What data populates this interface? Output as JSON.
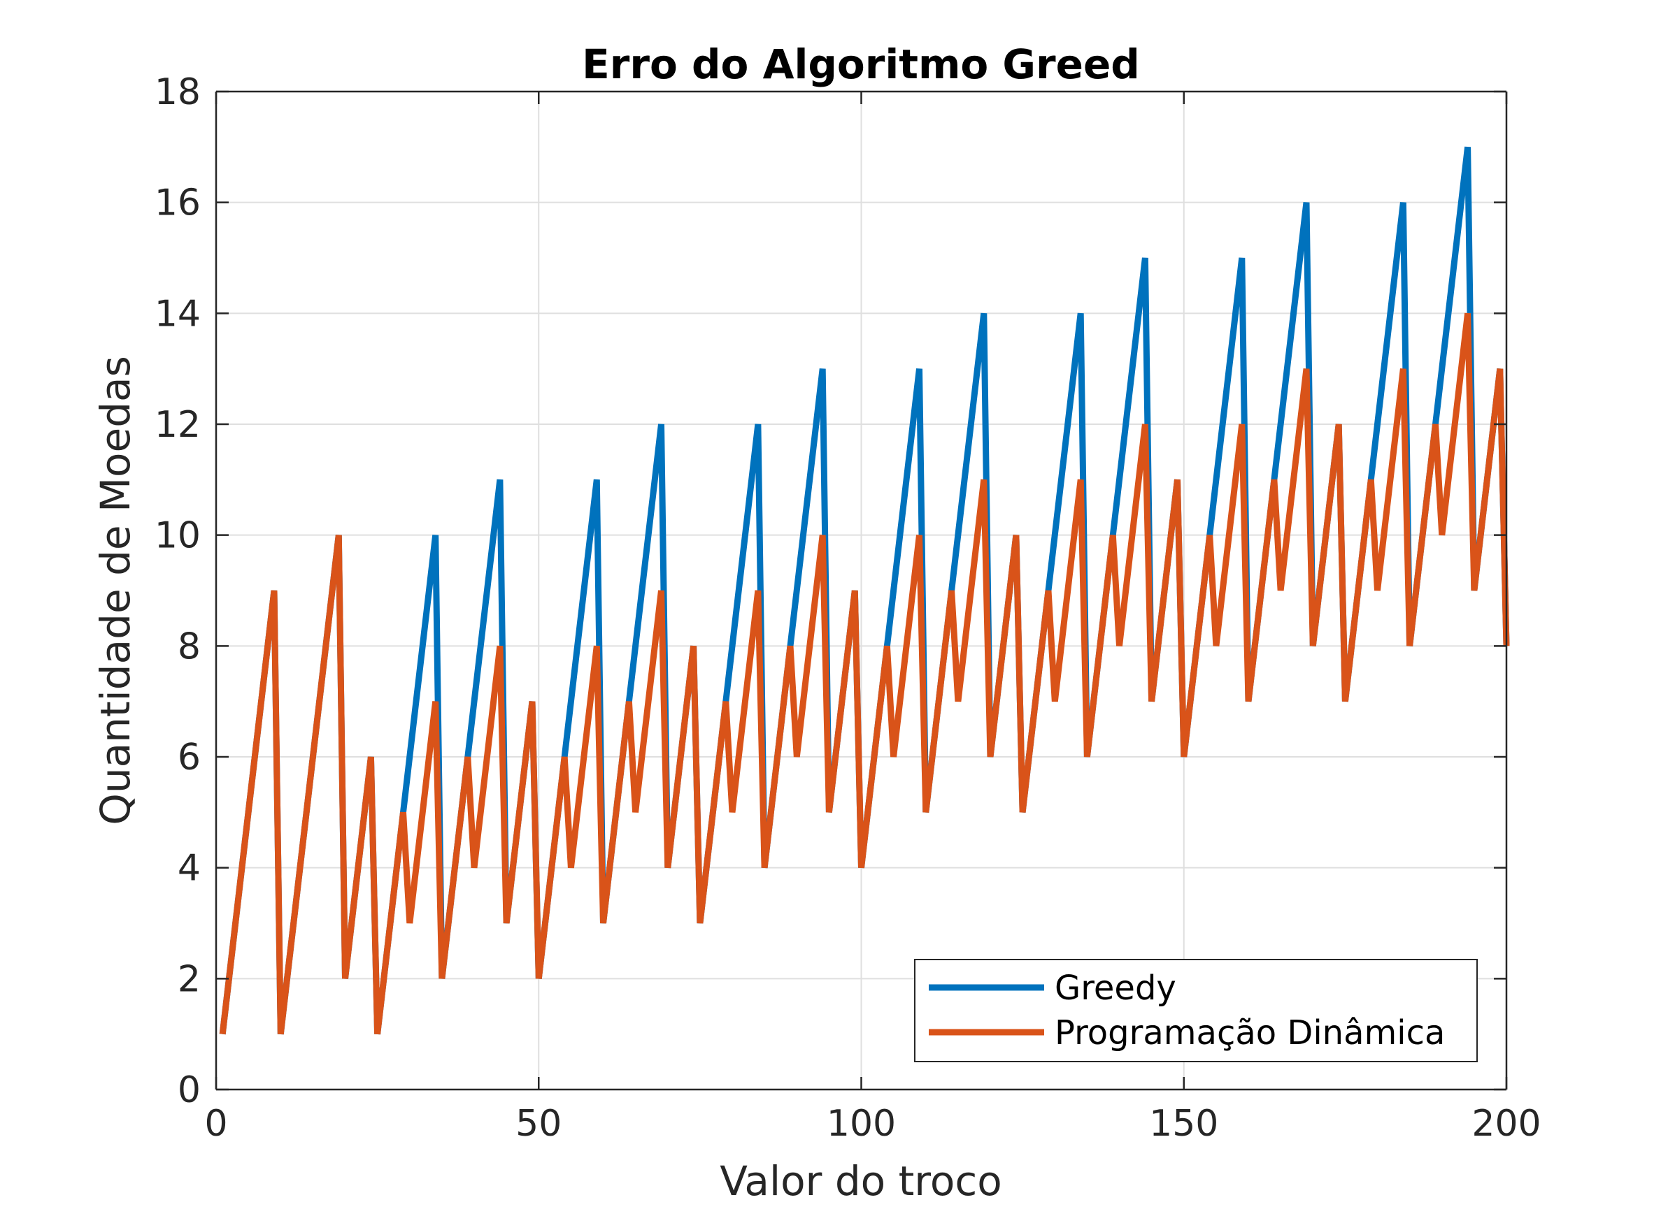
{
  "chart_data": {
    "type": "line",
    "title": "Erro do Algoritmo Greed",
    "xlabel": "Valor do troco",
    "ylabel": "Quantidade de Moedas",
    "xlim": [
      0,
      200
    ],
    "ylim": [
      0,
      18
    ],
    "xticks": [
      0,
      50,
      100,
      150,
      200
    ],
    "yticks": [
      0,
      2,
      4,
      6,
      8,
      10,
      12,
      14,
      16,
      18
    ],
    "grid": true,
    "legend_position": "bottom-right",
    "series": [
      {
        "name": "Greedy",
        "color": "#0072BD",
        "x": [
          1,
          9,
          10,
          19,
          20,
          24,
          25,
          29,
          34,
          35,
          39,
          44,
          45,
          49,
          50,
          54,
          59,
          60,
          64,
          69,
          70,
          74,
          75,
          79,
          84,
          85,
          89,
          94,
          95,
          99,
          100,
          104,
          109,
          110,
          114,
          119,
          120,
          124,
          125,
          129,
          134,
          135,
          139,
          144,
          145,
          149,
          150,
          154,
          159,
          160,
          164,
          169,
          170,
          174,
          175,
          179,
          184,
          185,
          189,
          194,
          195,
          199,
          200
        ],
        "y": [
          1,
          9,
          1,
          10,
          2,
          6,
          1,
          5,
          10,
          2,
          6,
          11,
          3,
          7,
          2,
          6,
          11,
          3,
          7,
          12,
          4,
          8,
          3,
          7,
          12,
          4,
          8,
          13,
          5,
          9,
          4,
          8,
          13,
          5,
          9,
          14,
          6,
          10,
          5,
          9,
          14,
          6,
          10,
          15,
          7,
          11,
          6,
          10,
          15,
          7,
          11,
          16,
          8,
          12,
          7,
          11,
          16,
          8,
          12,
          17,
          9,
          13,
          8
        ]
      },
      {
        "name": "Programação Dinâmica",
        "color": "#D95319",
        "x": [
          1,
          9,
          10,
          19,
          20,
          24,
          25,
          29,
          30,
          34,
          35,
          39,
          40,
          44,
          45,
          49,
          50,
          54,
          55,
          59,
          60,
          64,
          65,
          69,
          70,
          74,
          75,
          79,
          80,
          84,
          85,
          89,
          90,
          94,
          95,
          99,
          100,
          104,
          105,
          109,
          110,
          114,
          115,
          119,
          120,
          124,
          125,
          129,
          130,
          134,
          135,
          139,
          140,
          144,
          145,
          149,
          150,
          154,
          155,
          159,
          160,
          164,
          165,
          169,
          170,
          174,
          175,
          179,
          180,
          184,
          185,
          189,
          190,
          194,
          195,
          199,
          200
        ],
        "y": [
          1,
          9,
          1,
          10,
          2,
          6,
          1,
          5,
          3,
          7,
          2,
          6,
          4,
          8,
          3,
          7,
          2,
          6,
          4,
          8,
          3,
          7,
          5,
          9,
          4,
          8,
          3,
          7,
          5,
          9,
          4,
          8,
          6,
          10,
          5,
          9,
          4,
          8,
          6,
          10,
          5,
          9,
          7,
          11,
          6,
          10,
          5,
          9,
          7,
          11,
          6,
          10,
          8,
          12,
          7,
          11,
          6,
          10,
          8,
          12,
          7,
          11,
          9,
          13,
          8,
          12,
          7,
          11,
          9,
          13,
          8,
          12,
          10,
          14,
          9,
          13,
          8
        ]
      }
    ]
  }
}
